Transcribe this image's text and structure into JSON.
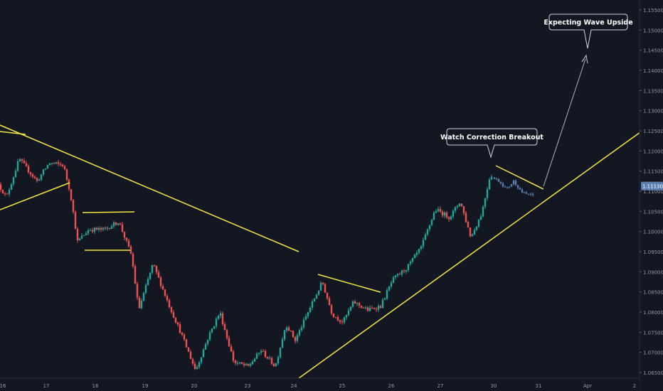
{
  "chart_data": {
    "type": "candlestick",
    "symbol_price_label": "1.11130",
    "y_ticks": [
      "1.15500",
      "1.15000",
      "1.14500",
      "1.14000",
      "1.13500",
      "1.13000",
      "1.12500",
      "1.12000",
      "1.11500",
      "1.11000",
      "1.10500",
      "1.10000",
      "1.09500",
      "1.09000",
      "1.08500",
      "1.08000",
      "1.07500",
      "1.07000",
      "1.06500"
    ],
    "y_range": [
      1.0635,
      1.1575
    ],
    "x_ticks": [
      "16",
      "17",
      "18",
      "19",
      "20",
      "23",
      "24",
      "25",
      "26",
      "27",
      "30",
      "31",
      "Apr",
      "2"
    ],
    "annotations": [
      {
        "text": "Watch Correction Breakout"
      },
      {
        "text": "Expecting Wave Upside"
      }
    ],
    "colors": {
      "up": "#26a69a",
      "down": "#ef5350",
      "projection": "#5b7fb0",
      "trendline": "#f5e642",
      "arrow": "#b0b3bc",
      "price_label_bg": "#5b7fb0"
    },
    "price_path": [
      [
        0,
        1.112
      ],
      [
        12,
        1.1085
      ],
      [
        30,
        1.118
      ],
      [
        55,
        1.1125
      ],
      [
        72,
        1.117
      ],
      [
        92,
        1.1165
      ],
      [
        102,
        1.1095
      ],
      [
        112,
        1.0975
      ],
      [
        128,
        1.1005
      ],
      [
        150,
        1.1005
      ],
      [
        170,
        1.1025
      ],
      [
        188,
        1.094
      ],
      [
        198,
        1.0805
      ],
      [
        218,
        1.092
      ],
      [
        240,
        1.082
      ],
      [
        258,
        1.0745
      ],
      [
        278,
        1.0655
      ],
      [
        295,
        1.0735
      ],
      [
        312,
        1.08
      ],
      [
        332,
        1.0675
      ],
      [
        352,
        1.0665
      ],
      [
        370,
        1.0705
      ],
      [
        390,
        1.0665
      ],
      [
        405,
        1.077
      ],
      [
        418,
        1.073
      ],
      [
        440,
        1.0815
      ],
      [
        456,
        1.0875
      ],
      [
        470,
        1.0795
      ],
      [
        485,
        1.0775
      ],
      [
        500,
        1.0825
      ],
      [
        520,
        1.0805
      ],
      [
        538,
        1.0815
      ],
      [
        555,
        1.088
      ],
      [
        575,
        1.091
      ],
      [
        595,
        1.096
      ],
      [
        615,
        1.1055
      ],
      [
        635,
        1.1035
      ],
      [
        650,
        1.1075
      ],
      [
        665,
        1.0985
      ],
      [
        680,
        1.1045
      ],
      [
        692,
        1.114
      ]
    ],
    "projection_path": [
      [
        694,
        1.1135
      ],
      [
        705,
        1.1125
      ],
      [
        715,
        1.1105
      ],
      [
        725,
        1.1125
      ],
      [
        738,
        1.1095
      ],
      [
        750,
        1.109
      ]
    ]
  }
}
